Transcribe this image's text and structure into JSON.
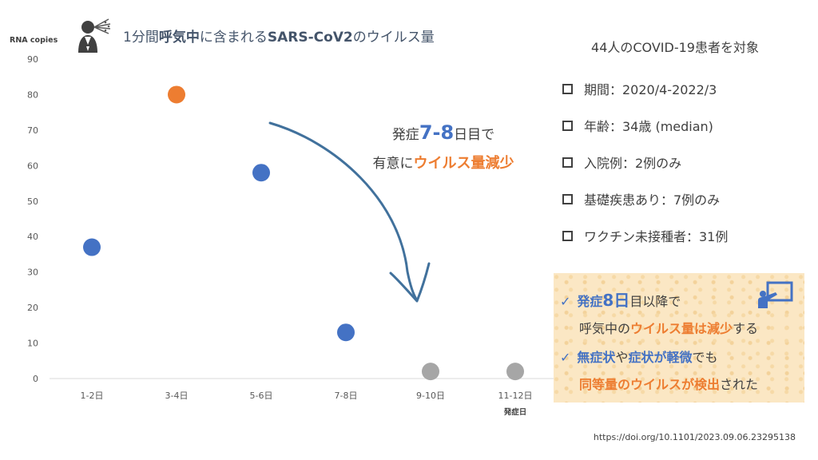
{
  "title": {
    "pre": "1分間",
    "b1": "呼気中",
    "mid": "に含まれる",
    "b2": "SARS-CoV2",
    "post": "のウイルス量"
  },
  "chart_data": {
    "type": "scatter",
    "ylabel": "RNA copies",
    "xlabel": "発症日",
    "ylim": [
      0,
      90
    ],
    "yticks": [
      "0",
      "10",
      "20",
      "30",
      "40",
      "50",
      "60",
      "70",
      "80",
      "90"
    ],
    "categories": [
      "1-2日",
      "3-4日",
      "5-6日",
      "7-8日",
      "9-10日",
      "11-12日"
    ],
    "points": [
      {
        "x": "1-2日",
        "y": 37,
        "color": "#4472c4"
      },
      {
        "x": "3-4日",
        "y": 80,
        "color": "#ed7d31"
      },
      {
        "x": "5-6日",
        "y": 58,
        "color": "#4472c4"
      },
      {
        "x": "7-8日",
        "y": 13,
        "color": "#4472c4"
      },
      {
        "x": "9-10日",
        "y": 2,
        "color": "#a6a6a6"
      },
      {
        "x": "11-12日",
        "y": 2,
        "color": "#a6a6a6"
      }
    ],
    "grid": false
  },
  "callout": {
    "line1_pre": "発症",
    "line1_big": "7-8",
    "line1_post": "日目で",
    "line2_pre": "有意に",
    "line2_orange": "ウイルス量減少"
  },
  "info": {
    "header": "44人のCOVID-19患者を対象",
    "items": [
      "期間：2020/4-2022/3",
      "年齢：34歳 (median)",
      "入院例：2例のみ",
      "基礎疾患あり：7例のみ",
      "ワクチン未接種者：31例"
    ]
  },
  "summary": {
    "check": "✓",
    "l1_a": "発症",
    "l1_b": "8日",
    "l1_c": "目以降で",
    "l2_a": "呼気中の",
    "l2_b": "ウイルス量は減少",
    "l2_c": "する",
    "l3_a": "無症状",
    "l3_b": "や",
    "l3_c": "症状が軽微",
    "l3_d": "でも",
    "l4_a": "同等量のウイルスが検出",
    "l4_b": "された"
  },
  "footer": {
    "doi": "https://doi.org/10.1101/2023.09.06.23295138"
  },
  "colors": {
    "blue": "#4472c4",
    "orange": "#ed7d31",
    "gray": "#a6a6a6",
    "arrow": "#41719c",
    "summary_bg": "#fbe7c4"
  }
}
